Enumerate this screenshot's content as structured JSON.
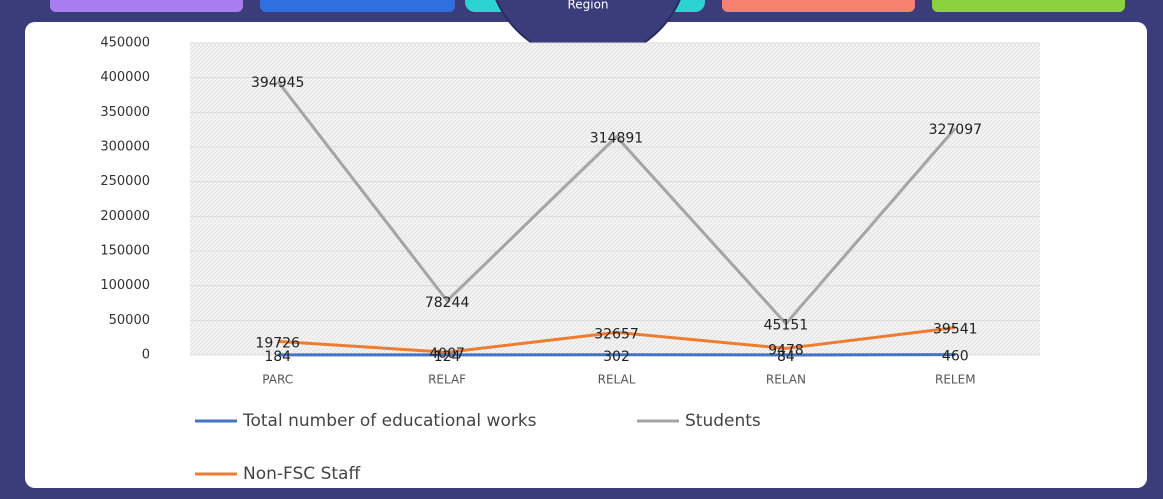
{
  "header": {
    "badge": "Region"
  },
  "chart_data": {
    "type": "line",
    "categories": [
      "PARC",
      "RELAF",
      "RELAL",
      "RELAN",
      "RELEM"
    ],
    "series": [
      {
        "name": "Total number of educational works",
        "color": "#4472c4",
        "values": [
          184,
          124,
          302,
          84,
          460
        ]
      },
      {
        "name": "Students",
        "color": "#a5a5a5",
        "values": [
          394945,
          78244,
          314891,
          45151,
          327097
        ]
      },
      {
        "name": "Non-FSC Staff",
        "color": "#ed7d31",
        "values": [
          19726,
          4007,
          32657,
          9478,
          39541
        ]
      }
    ],
    "ylim": [
      0,
      450000
    ],
    "yticks": [
      0,
      50000,
      100000,
      150000,
      200000,
      250000,
      300000,
      350000,
      400000,
      450000
    ],
    "grid": true
  }
}
